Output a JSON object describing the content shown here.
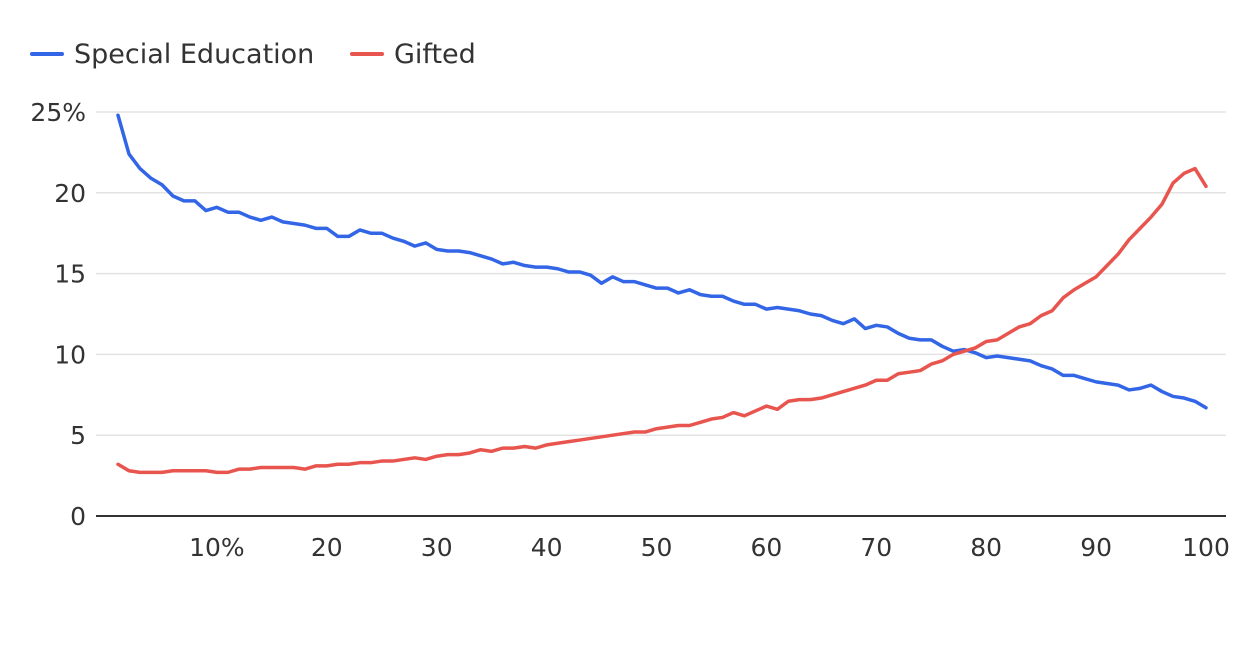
{
  "chart_data": {
    "type": "line",
    "title": "",
    "xlabel": "",
    "ylabel": "",
    "xlim": [
      1,
      100
    ],
    "ylim": [
      0,
      25
    ],
    "grid": true,
    "legend_position": "top-left",
    "x": [
      1,
      2,
      3,
      4,
      5,
      6,
      7,
      8,
      9,
      10,
      11,
      12,
      13,
      14,
      15,
      16,
      17,
      18,
      19,
      20,
      21,
      22,
      23,
      24,
      25,
      26,
      27,
      28,
      29,
      30,
      31,
      32,
      33,
      34,
      35,
      36,
      37,
      38,
      39,
      40,
      41,
      42,
      43,
      44,
      45,
      46,
      47,
      48,
      49,
      50,
      51,
      52,
      53,
      54,
      55,
      56,
      57,
      58,
      59,
      60,
      61,
      62,
      63,
      64,
      65,
      66,
      67,
      68,
      69,
      70,
      71,
      72,
      73,
      74,
      75,
      76,
      77,
      78,
      79,
      80,
      81,
      82,
      83,
      84,
      85,
      86,
      87,
      88,
      89,
      90,
      91,
      92,
      93,
      94,
      95,
      96,
      97,
      98,
      99,
      100
    ],
    "x_ticks": [
      {
        "value": 10,
        "label": "10%"
      },
      {
        "value": 20,
        "label": "20"
      },
      {
        "value": 30,
        "label": "30"
      },
      {
        "value": 40,
        "label": "40"
      },
      {
        "value": 50,
        "label": "50"
      },
      {
        "value": 60,
        "label": "60"
      },
      {
        "value": 70,
        "label": "70"
      },
      {
        "value": 80,
        "label": "80"
      },
      {
        "value": 90,
        "label": "90"
      },
      {
        "value": 100,
        "label": "100"
      }
    ],
    "y_ticks": [
      {
        "value": 0,
        "label": "0"
      },
      {
        "value": 5,
        "label": "5"
      },
      {
        "value": 10,
        "label": "10"
      },
      {
        "value": 15,
        "label": "15"
      },
      {
        "value": 20,
        "label": "20"
      },
      {
        "value": 25,
        "label": "25%"
      }
    ],
    "series": [
      {
        "name": "Special Education",
        "color": "#3366e6",
        "values": [
          24.8,
          22.4,
          21.5,
          20.9,
          20.5,
          19.8,
          19.5,
          19.5,
          18.9,
          19.1,
          18.8,
          18.8,
          18.5,
          18.3,
          18.5,
          18.2,
          18.1,
          18.0,
          17.8,
          17.8,
          17.3,
          17.3,
          17.7,
          17.5,
          17.5,
          17.2,
          17.0,
          16.7,
          16.9,
          16.5,
          16.4,
          16.4,
          16.3,
          16.1,
          15.9,
          15.6,
          15.7,
          15.5,
          15.4,
          15.4,
          15.3,
          15.1,
          15.1,
          14.9,
          14.4,
          14.8,
          14.5,
          14.5,
          14.3,
          14.1,
          14.1,
          13.8,
          14.0,
          13.7,
          13.6,
          13.6,
          13.3,
          13.1,
          13.1,
          12.8,
          12.9,
          12.8,
          12.7,
          12.5,
          12.4,
          12.1,
          11.9,
          12.2,
          11.6,
          11.8,
          11.7,
          11.3,
          11.0,
          10.9,
          10.9,
          10.5,
          10.2,
          10.3,
          10.1,
          9.8,
          9.9,
          9.8,
          9.7,
          9.6,
          9.3,
          9.1,
          8.7,
          8.7,
          8.5,
          8.3,
          8.2,
          8.1,
          7.8,
          7.9,
          8.1,
          7.7,
          7.4,
          7.3,
          7.1,
          6.7
        ]
      },
      {
        "name": "Gifted",
        "color": "#e8554e",
        "values": [
          3.2,
          2.8,
          2.7,
          2.7,
          2.7,
          2.8,
          2.8,
          2.8,
          2.8,
          2.7,
          2.7,
          2.9,
          2.9,
          3.0,
          3.0,
          3.0,
          3.0,
          2.9,
          3.1,
          3.1,
          3.2,
          3.2,
          3.3,
          3.3,
          3.4,
          3.4,
          3.5,
          3.6,
          3.5,
          3.7,
          3.8,
          3.8,
          3.9,
          4.1,
          4.0,
          4.2,
          4.2,
          4.3,
          4.2,
          4.4,
          4.5,
          4.6,
          4.7,
          4.8,
          4.9,
          5.0,
          5.1,
          5.2,
          5.2,
          5.4,
          5.5,
          5.6,
          5.6,
          5.8,
          6.0,
          6.1,
          6.4,
          6.2,
          6.5,
          6.8,
          6.6,
          7.1,
          7.2,
          7.2,
          7.3,
          7.5,
          7.7,
          7.9,
          8.1,
          8.4,
          8.4,
          8.8,
          8.9,
          9.0,
          9.4,
          9.6,
          10.0,
          10.2,
          10.4,
          10.8,
          10.9,
          11.3,
          11.7,
          11.9,
          12.4,
          12.7,
          13.5,
          14.0,
          14.4,
          14.8,
          15.5,
          16.2,
          17.1,
          17.8,
          18.5,
          19.3,
          20.6,
          21.2,
          21.5,
          20.4
        ]
      }
    ]
  }
}
